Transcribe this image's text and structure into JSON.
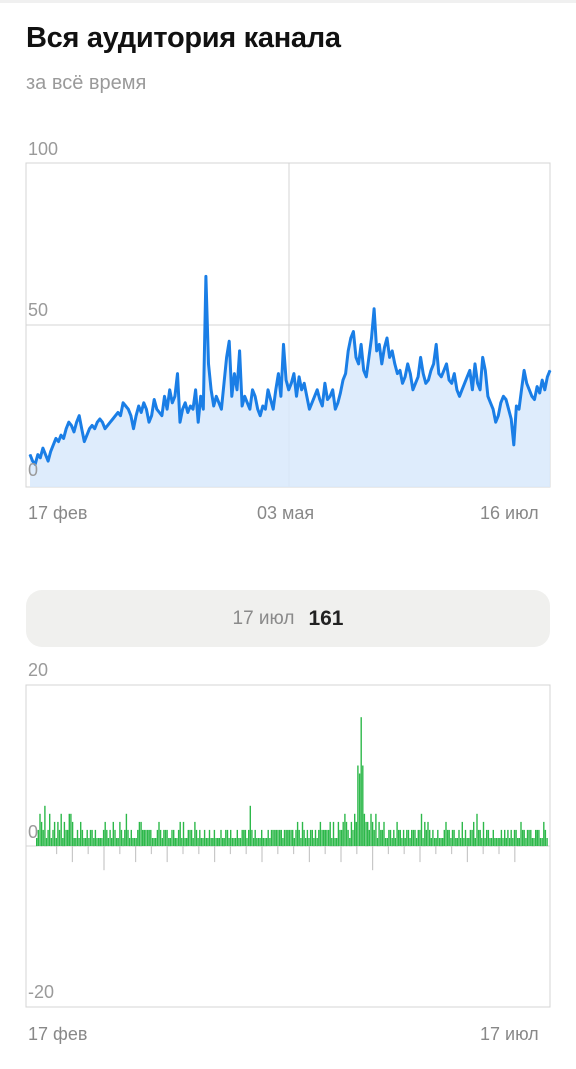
{
  "header": {
    "title": "Вся аудитория канала",
    "subtitle": "за всё время"
  },
  "summary": {
    "date": "17 июл",
    "value": "161"
  },
  "colors": {
    "line": "#1a7ee6",
    "area": "#d8e9fb",
    "bar": "#2db84a",
    "bar_negative": "#c8c8c8",
    "grid": "#d4d4d4"
  },
  "chart_data": [
    {
      "type": "area",
      "y_ticks": [
        "0",
        "50",
        "100"
      ],
      "x_ticks": [
        "17 фев",
        "03 мая",
        "16 июл"
      ],
      "ylim": [
        0,
        100
      ],
      "grid": true,
      "values": [
        10,
        8,
        7,
        10,
        9,
        12,
        10,
        8,
        11,
        13,
        15,
        14,
        16,
        15,
        18,
        20,
        19,
        17,
        20,
        22,
        18,
        14,
        16,
        18,
        19,
        18,
        20,
        21,
        20,
        18,
        19,
        20,
        21,
        22,
        23,
        22,
        26,
        25,
        24,
        22,
        18,
        22,
        25,
        23,
        26,
        24,
        20,
        22,
        27,
        24,
        23,
        22,
        28,
        24,
        30,
        26,
        28,
        35,
        20,
        24,
        26,
        23,
        25,
        24,
        30,
        20,
        28,
        24,
        65,
        38,
        30,
        25,
        28,
        26,
        24,
        32,
        40,
        45,
        28,
        35,
        30,
        42,
        25,
        28,
        26,
        24,
        30,
        28,
        24,
        22,
        25,
        24,
        30,
        27,
        24,
        30,
        35,
        28,
        44,
        33,
        30,
        32,
        35,
        28,
        34,
        30,
        32,
        28,
        24,
        26,
        28,
        30,
        27,
        25,
        32,
        27,
        28,
        30,
        24,
        26,
        29,
        33,
        35,
        42,
        46,
        48,
        40,
        38,
        44,
        36,
        34,
        40,
        46,
        55,
        42,
        44,
        38,
        43,
        46,
        40,
        42,
        38,
        35,
        36,
        32,
        34,
        38,
        35,
        30,
        32,
        34,
        40,
        35,
        32,
        33,
        36,
        38,
        44,
        35,
        34,
        36,
        38,
        33,
        32,
        35,
        30,
        28,
        30,
        32,
        34,
        36,
        30,
        38,
        32,
        30,
        40,
        36,
        28,
        26,
        24,
        20,
        22,
        26,
        28,
        27,
        24,
        21,
        13,
        25,
        24,
        30,
        36,
        32,
        30,
        28,
        27,
        31,
        29,
        33,
        30,
        34,
        36
      ]
    },
    {
      "type": "bar",
      "y_ticks": [
        "20",
        "0",
        "-20"
      ],
      "x_ticks": [
        "17 фев",
        "17 июл"
      ],
      "ylim": [
        -20,
        20
      ],
      "values": [
        1,
        2,
        4,
        3,
        2,
        5,
        1,
        2,
        4,
        1,
        2,
        3,
        1,
        3,
        2,
        4,
        1,
        3,
        2,
        2,
        4,
        4,
        3,
        1,
        1,
        2,
        1,
        3,
        2,
        1,
        1,
        2,
        1,
        2,
        2,
        1,
        2,
        1,
        1,
        1,
        1,
        2,
        3,
        2,
        1,
        2,
        1,
        3,
        2,
        1,
        1,
        3,
        2,
        1,
        2,
        4,
        2,
        1,
        2,
        1,
        1,
        1,
        2,
        3,
        3,
        2,
        2,
        2,
        2,
        2,
        2,
        1,
        1,
        1,
        2,
        3,
        2,
        1,
        2,
        2,
        2,
        1,
        1,
        2,
        2,
        1,
        1,
        2,
        3,
        1,
        3,
        1,
        1,
        2,
        2,
        2,
        1,
        3,
        2,
        1,
        2,
        1,
        1,
        2,
        1,
        1,
        2,
        1,
        1,
        2,
        1,
        1,
        1,
        2,
        1,
        1,
        2,
        2,
        1,
        2,
        1,
        1,
        1,
        2,
        1,
        1,
        2,
        2,
        2,
        1,
        2,
        5,
        2,
        1,
        2,
        1,
        1,
        1,
        2,
        1,
        1,
        1,
        2,
        1,
        2,
        2,
        2,
        2,
        2,
        2,
        2,
        1,
        2,
        2,
        2,
        2,
        2,
        2,
        1,
        2,
        3,
        2,
        1,
        3,
        2,
        1,
        2,
        1,
        2,
        2,
        1,
        2,
        1,
        2,
        3,
        2,
        2,
        2,
        2,
        2,
        3,
        1,
        3,
        1,
        1,
        3,
        2,
        2,
        3,
        4,
        3,
        2,
        1,
        3,
        2,
        4,
        3,
        10,
        9,
        16,
        10,
        4,
        3,
        3,
        2,
        4,
        3,
        2,
        4,
        1,
        3,
        2,
        2,
        3,
        1,
        1,
        2,
        2,
        1,
        2,
        1,
        3,
        2,
        2,
        1,
        2,
        1,
        2,
        2,
        1,
        2,
        2,
        2,
        1,
        2,
        2,
        4,
        1,
        3,
        2,
        3,
        2,
        1,
        2,
        1,
        1,
        2,
        1,
        1,
        1,
        2,
        3,
        2,
        2,
        1,
        2,
        2,
        1,
        1,
        2,
        1,
        3,
        1,
        2,
        1,
        1,
        2,
        2,
        3,
        1,
        4,
        2,
        2,
        1,
        3,
        1,
        2,
        2,
        1,
        1,
        2,
        1,
        1,
        1,
        1,
        2,
        1,
        2,
        1,
        2,
        1,
        2,
        1,
        2,
        2,
        1,
        1,
        3,
        2,
        2,
        1,
        2,
        2,
        2,
        1,
        1,
        2,
        2,
        2,
        1,
        1,
        3,
        2,
        1
      ],
      "negatives": [
        -1,
        -2,
        -1,
        -3,
        -1,
        -2,
        -1,
        -2,
        -1,
        -1,
        -2,
        -1,
        -1,
        -2,
        -1,
        -1,
        -2,
        -1,
        -2,
        -1,
        -3,
        -1,
        -1,
        -2,
        -1,
        -1,
        -2,
        -1,
        -1,
        -2
      ]
    }
  ]
}
